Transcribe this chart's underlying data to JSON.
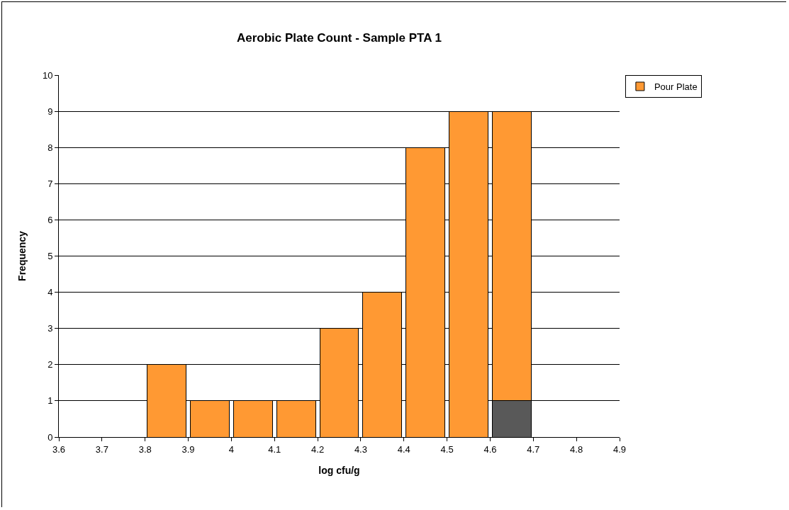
{
  "chart_data": {
    "type": "bar",
    "title": "Aerobic Plate Count - Sample PTA 1",
    "xlabel": "log cfu/g",
    "ylabel": "Frequency",
    "x": [
      3.85,
      3.95,
      4.05,
      4.15,
      4.25,
      4.35,
      4.45,
      4.55,
      4.65
    ],
    "series": [
      {
        "color": "#595959",
        "values": [
          null,
          null,
          null,
          null,
          null,
          null,
          null,
          null,
          1
        ]
      },
      {
        "name": "Pour Plate",
        "color": "#ff9933",
        "values": [
          2,
          1,
          1,
          1,
          3,
          4,
          8,
          9,
          8
        ]
      }
    ],
    "stacked": true,
    "xlim": [
      3.6,
      4.9
    ],
    "xticks": [
      3.6,
      3.7,
      3.8,
      3.9,
      4,
      4.1,
      4.2,
      4.3,
      4.4,
      4.5,
      4.6,
      4.7,
      4.8,
      4.9
    ],
    "ylim": [
      0,
      10
    ],
    "yticks": [
      0,
      1,
      2,
      3,
      4,
      5,
      6,
      7,
      8,
      9,
      10
    ],
    "grid": "y",
    "legend": "top right"
  }
}
